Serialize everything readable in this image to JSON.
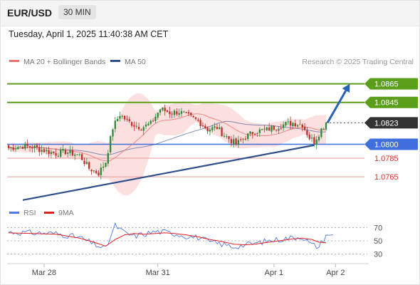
{
  "header": {
    "symbol": "EUR/USD",
    "timeframe": "30 MIN"
  },
  "datetime": "Tuesday, April 1, 2025 11:40:38 AM CET",
  "legend": {
    "ma20": "MA 20 + Bollinger Bands",
    "ma50": "MA 50",
    "credit": "Research © 2025 Trading Central",
    "rsi": "RSI",
    "ma9": "9MA"
  },
  "colors": {
    "ma20": "#e8736e",
    "bollinger_fill": "#fbd4d4",
    "ma50": "#2e4e8c",
    "support": "#3f6fdc",
    "target": "#5a9e1a",
    "pivot_dash": "#e89a9a",
    "trendline": "#2e4e8c",
    "arrow": "#2962b5",
    "candle_up": "#2f8a3a",
    "candle_down": "#c0302b",
    "rsi": "#4f78e0",
    "rsi_ma": "#e02020"
  },
  "chart_data": [
    {
      "type": "candlestick",
      "title": "EUR/USD",
      "timeframe": "30 MIN",
      "x_tick_labels": [
        "Mar 28",
        "Mar 31",
        "Apr 1",
        "Apr 2"
      ],
      "ylim": [
        1.0736,
        1.088
      ],
      "last_price": 1.0823,
      "levels": [
        {
          "value": 1.0865,
          "label": "1.0865",
          "kind": "target"
        },
        {
          "value": 1.0845,
          "label": "1.0845",
          "kind": "target"
        },
        {
          "value": 1.0823,
          "label": "1.0823",
          "kind": "current"
        },
        {
          "value": 1.08,
          "label": "1.0800",
          "kind": "pivot"
        },
        {
          "value": 1.0785,
          "label": "1.0785",
          "kind": "support"
        },
        {
          "value": 1.0765,
          "label": "1.0765",
          "kind": "support"
        }
      ],
      "close_profile": [
        [
          0,
          1.0796
        ],
        [
          6,
          1.0798
        ],
        [
          10,
          1.0797
        ],
        [
          14,
          1.0794
        ],
        [
          20,
          1.079
        ],
        [
          24,
          1.0792
        ],
        [
          30,
          1.0788
        ],
        [
          34,
          1.0774
        ],
        [
          38,
          1.0769
        ],
        [
          41,
          1.0781
        ],
        [
          44,
          1.0818
        ],
        [
          47,
          1.0832
        ],
        [
          50,
          1.0825
        ],
        [
          53,
          1.0821
        ],
        [
          56,
          1.0818
        ],
        [
          60,
          1.0822
        ],
        [
          64,
          1.0838
        ],
        [
          68,
          1.0834
        ],
        [
          72,
          1.0835
        ],
        [
          76,
          1.083
        ],
        [
          80,
          1.0825
        ],
        [
          84,
          1.0816
        ],
        [
          88,
          1.0818
        ],
        [
          90,
          1.0812
        ],
        [
          93,
          1.0806
        ],
        [
          96,
          1.08
        ],
        [
          100,
          1.0808
        ],
        [
          104,
          1.0814
        ],
        [
          108,
          1.0815
        ],
        [
          112,
          1.0818
        ],
        [
          116,
          1.0821
        ],
        [
          120,
          1.0823
        ],
        [
          124,
          1.0821
        ],
        [
          127,
          1.0807
        ],
        [
          129,
          1.0803
        ],
        [
          132,
          1.0816
        ],
        [
          134,
          1.0823
        ]
      ],
      "trendline": [
        [
          6,
          1.074
        ],
        [
          129,
          1.0799
        ]
      ],
      "projection": [
        [
          134,
          1.0823
        ],
        [
          144,
          1.0865
        ]
      ]
    },
    {
      "type": "line",
      "title": "RSI",
      "ylim": [
        20,
        80
      ],
      "yticks": [
        30,
        50,
        70
      ],
      "series": [
        {
          "name": "RSI",
          "points": [
            [
              0,
              63
            ],
            [
              10,
              62
            ],
            [
              20,
              61
            ],
            [
              30,
              55
            ],
            [
              36,
              45
            ],
            [
              41,
              38
            ],
            [
              45,
              73
            ],
            [
              49,
              62
            ],
            [
              53,
              57
            ],
            [
              57,
              60
            ],
            [
              62,
              64
            ],
            [
              66,
              63
            ],
            [
              70,
              61
            ],
            [
              75,
              57
            ],
            [
              80,
              55
            ],
            [
              85,
              48
            ],
            [
              90,
              45
            ],
            [
              95,
              41
            ],
            [
              100,
              44
            ],
            [
              104,
              46
            ],
            [
              108,
              49
            ],
            [
              112,
              51
            ],
            [
              116,
              53
            ],
            [
              120,
              55
            ],
            [
              124,
              56
            ],
            [
              128,
              44
            ],
            [
              131,
              41
            ],
            [
              134,
              58
            ],
            [
              137,
              59
            ]
          ]
        },
        {
          "name": "9MA",
          "points": [
            [
              0,
              62
            ],
            [
              10,
              61
            ],
            [
              20,
              60
            ],
            [
              30,
              54
            ],
            [
              36,
              48
            ],
            [
              41,
              42
            ],
            [
              45,
              52
            ],
            [
              49,
              59
            ],
            [
              53,
              61
            ],
            [
              57,
              60
            ],
            [
              62,
              61
            ],
            [
              66,
              62
            ],
            [
              70,
              61
            ],
            [
              75,
              59
            ],
            [
              80,
              56
            ],
            [
              85,
              52
            ],
            [
              90,
              49
            ],
            [
              95,
              45
            ],
            [
              100,
              44
            ],
            [
              104,
              45
            ],
            [
              108,
              47
            ],
            [
              112,
              49
            ],
            [
              116,
              51
            ],
            [
              120,
              53
            ],
            [
              124,
              54
            ],
            [
              128,
              52
            ],
            [
              131,
              48
            ],
            [
              134,
              47
            ]
          ]
        }
      ]
    }
  ]
}
